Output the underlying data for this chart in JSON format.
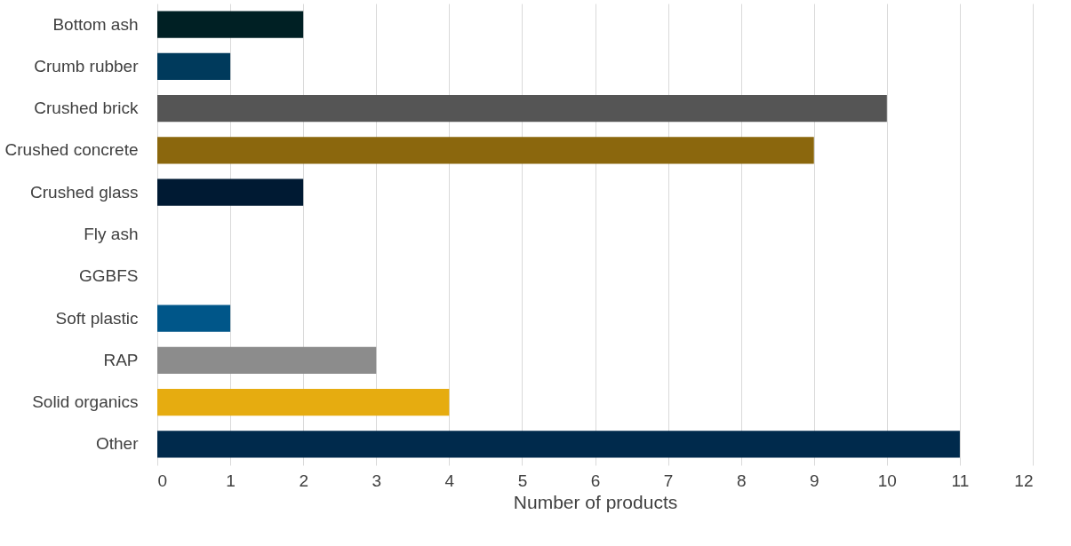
{
  "chart_data": {
    "type": "bar",
    "orientation": "horizontal",
    "xlabel": "Number of products",
    "categories": [
      "Bottom ash",
      "Crumb rubber",
      "Crushed brick",
      "Crushed concrete",
      "Crushed glass",
      "Fly ash",
      "GGBFS",
      "Soft plastic",
      "RAP",
      "Solid organics",
      "Other"
    ],
    "values": [
      2,
      1,
      10,
      9,
      2,
      0,
      0,
      1,
      3,
      4,
      11
    ],
    "colors": [
      "#002024",
      "#003a5c",
      "#555555",
      "#8b670d",
      "#001a33",
      "#002a4a",
      "#002a4a",
      "#005689",
      "#8c8c8c",
      "#e6ac10",
      "#002a4c"
    ],
    "xlim": [
      0,
      12
    ],
    "xticks": [
      0,
      1,
      2,
      3,
      4,
      5,
      6,
      7,
      8,
      9,
      10,
      11,
      12
    ],
    "grid": "x"
  }
}
